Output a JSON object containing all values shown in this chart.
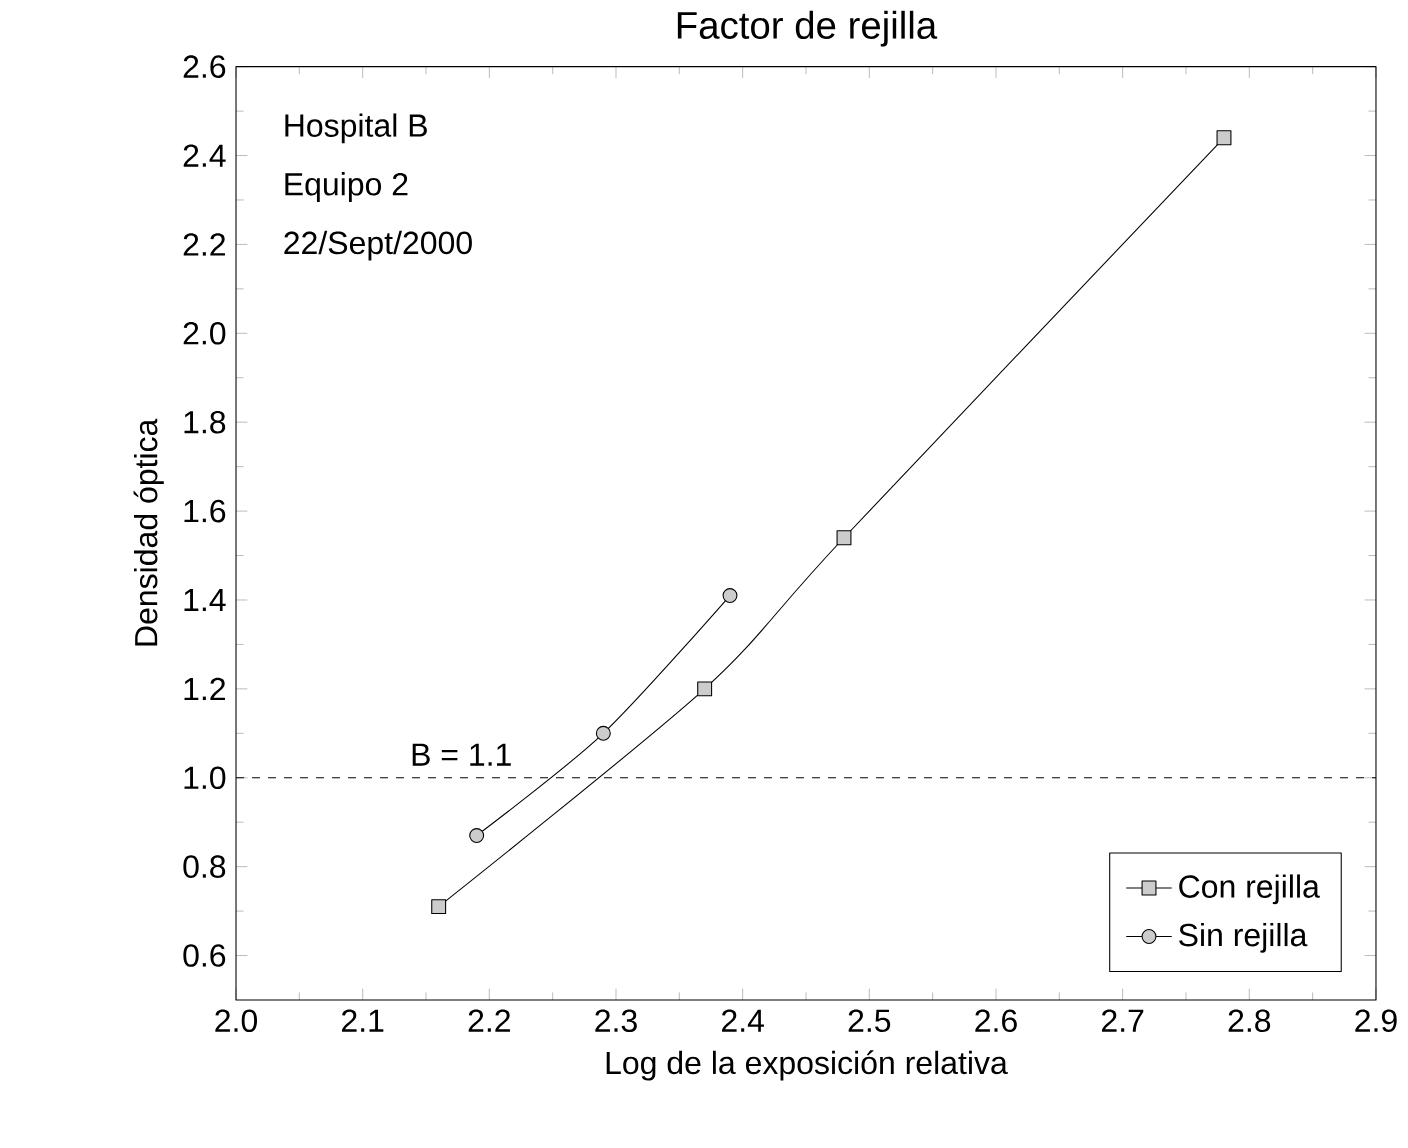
{
  "chart_data": {
    "type": "line",
    "title": "Factor de rejilla",
    "xlabel": "Log de la exposición relativa",
    "ylabel": "Densidad óptica",
    "xlim": [
      2.0,
      2.9
    ],
    "xticks": [
      {
        "value": 2.0,
        "label": "2.0"
      },
      2.1,
      2.2,
      2.3,
      2.4,
      2.5,
      2.6,
      2.7,
      2.8,
      2.9
    ],
    "ylim": [
      0.5,
      2.6
    ],
    "yticks": [
      0.6,
      0.8,
      {
        "value": 1.0,
        "label": "1.0"
      },
      1.2,
      1.4,
      1.6,
      1.8,
      {
        "value": 2.0,
        "label": "2.0"
      },
      2.2,
      2.4,
      2.6
    ],
    "series": [
      {
        "name": "Con rejilla",
        "color": "#000000",
        "marker": "square",
        "x": [
          2.16,
          2.37,
          2.48,
          2.78
        ],
        "values": [
          0.71,
          1.2,
          1.54,
          2.44
        ]
      },
      {
        "name": "Sin rejilla",
        "color": "#000000",
        "marker": "circle",
        "x": [
          2.19,
          2.29,
          2.39
        ],
        "values": [
          0.87,
          1.1,
          1.41
        ]
      }
    ],
    "ref_lines": [
      {
        "axis": "y",
        "value": 1.0,
        "line_style": "dashed"
      }
    ],
    "annotations": [
      "Hospital B",
      "Equipo 2",
      "22/Sept/2000",
      {
        "text": "B = 1.1",
        "x": 2.13,
        "y": 1.0
      }
    ],
    "legend": "bottom right",
    "grid": false,
    "line_style": "solid"
  }
}
